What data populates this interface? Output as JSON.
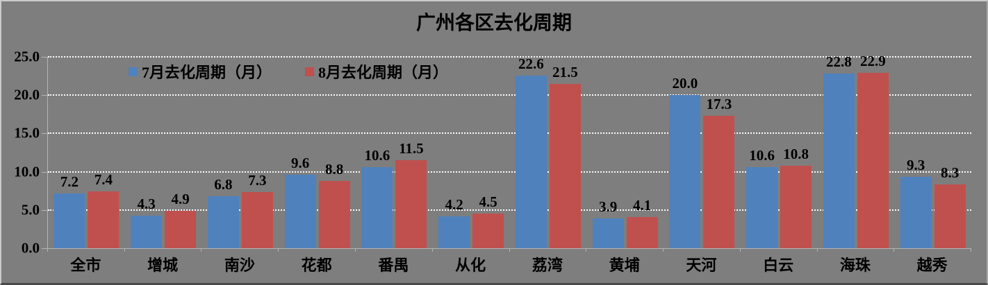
{
  "chart_data": {
    "type": "bar",
    "title": "广州各区去化周期",
    "categories": [
      "全市",
      "增城",
      "南沙",
      "花都",
      "番禺",
      "从化",
      "荔湾",
      "黄埔",
      "天河",
      "白云",
      "海珠",
      "越秀"
    ],
    "series": [
      {
        "name": "7月去化周期（月）",
        "color": "#4F81BD",
        "values": [
          7.2,
          4.3,
          6.8,
          9.6,
          10.6,
          4.2,
          22.6,
          3.9,
          20.0,
          10.6,
          22.8,
          9.3
        ]
      },
      {
        "name": "8月去化周期（月）",
        "color": "#C0504D",
        "values": [
          7.4,
          4.9,
          7.3,
          8.8,
          11.5,
          4.5,
          21.5,
          4.1,
          17.3,
          10.8,
          22.9,
          8.3
        ]
      }
    ],
    "ylim": [
      0,
      25
    ],
    "ytick_step": 5,
    "ytick_labels": [
      "0.0",
      "5.0",
      "10.0",
      "15.0",
      "20.0",
      "25.0"
    ],
    "value_label_decimals": 1,
    "grid": "horizontal-white-dotted",
    "legend_position": "inside-top-left",
    "background_color": "#7E7E7E",
    "gridline_color": "#FDFDFD",
    "axis_color": "#B5B5B5",
    "text_color": "#000000"
  }
}
